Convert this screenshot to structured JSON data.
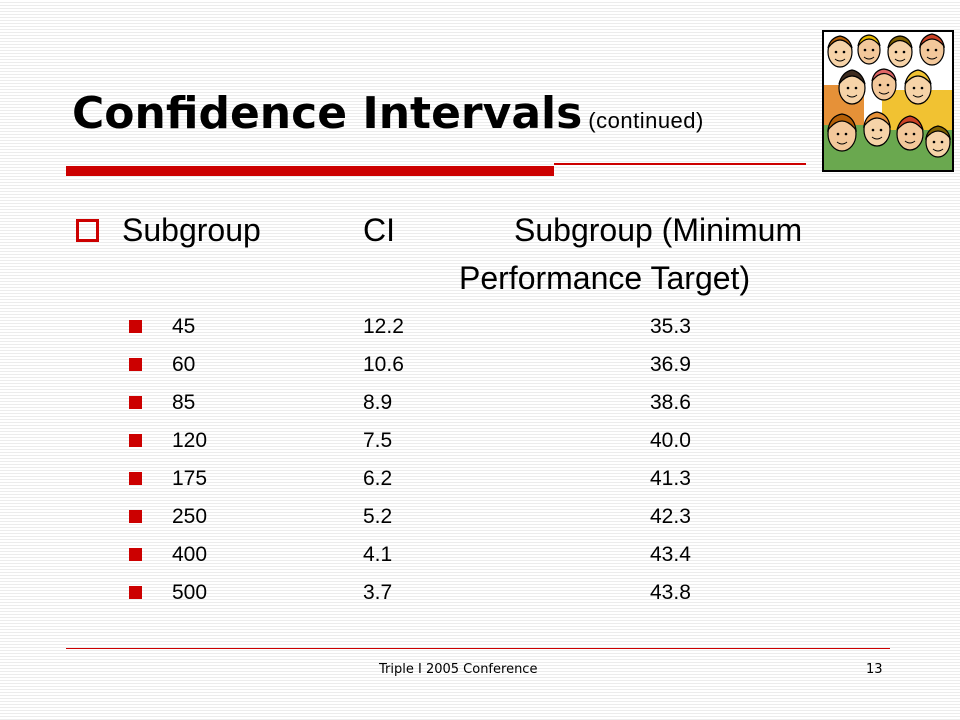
{
  "slide": {
    "title": "Confidence Intervals",
    "title_suffix": "(continued)",
    "header": {
      "col1": "Subgroup",
      "col2": "CI",
      "col3_line1": "Subgroup (Minimum",
      "col3_line2": "Performance Target)"
    },
    "rows": [
      {
        "subgroup": "45",
        "ci": "12.2",
        "target": "35.3"
      },
      {
        "subgroup": "60",
        "ci": "10.6",
        "target": "36.9"
      },
      {
        "subgroup": "85",
        "ci": "8.9",
        "target": "38.6"
      },
      {
        "subgroup": "120",
        "ci": "7.5",
        "target": "40.0"
      },
      {
        "subgroup": "175",
        "ci": "6.2",
        "target": "41.3"
      },
      {
        "subgroup": "250",
        "ci": "5.2",
        "target": "42.3"
      },
      {
        "subgroup": "400",
        "ci": "4.1",
        "target": "43.4"
      },
      {
        "subgroup": "500",
        "ci": "3.7",
        "target": "43.8"
      }
    ],
    "footer": {
      "text": "Triple I 2005 Conference",
      "page_number": "13"
    }
  },
  "colors": {
    "accent": "#cc0000",
    "text": "#000000",
    "background": "#ffffff",
    "stripe": "#ececec"
  },
  "icons": {
    "main_bullet": "hollow-square-bullet-icon",
    "row_bullet": "filled-square-bullet-icon",
    "clipart": "group-of-people-clipart"
  }
}
